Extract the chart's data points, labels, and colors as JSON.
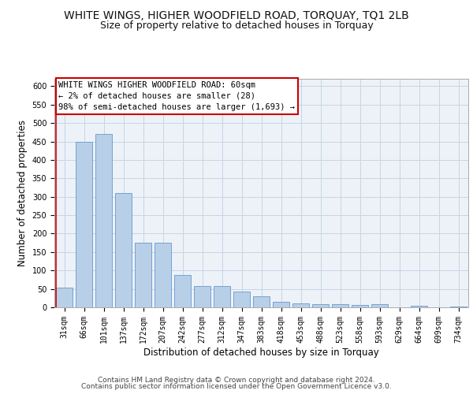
{
  "title": "WHITE WINGS, HIGHER WOODFIELD ROAD, TORQUAY, TQ1 2LB",
  "subtitle": "Size of property relative to detached houses in Torquay",
  "xlabel": "Distribution of detached houses by size in Torquay",
  "ylabel": "Number of detached properties",
  "categories": [
    "31sqm",
    "66sqm",
    "101sqm",
    "137sqm",
    "172sqm",
    "207sqm",
    "242sqm",
    "277sqm",
    "312sqm",
    "347sqm",
    "383sqm",
    "418sqm",
    "453sqm",
    "488sqm",
    "523sqm",
    "558sqm",
    "593sqm",
    "629sqm",
    "664sqm",
    "699sqm",
    "734sqm"
  ],
  "values": [
    53,
    450,
    470,
    310,
    175,
    175,
    88,
    58,
    58,
    43,
    30,
    15,
    10,
    9,
    8,
    7,
    8,
    0,
    4,
    0,
    3
  ],
  "bar_color": "#b8cfe8",
  "bar_edge_color": "#6699cc",
  "highlight_color": "#cc0000",
  "ylim": [
    0,
    620
  ],
  "yticks": [
    0,
    50,
    100,
    150,
    200,
    250,
    300,
    350,
    400,
    450,
    500,
    550,
    600
  ],
  "annotation_line1": "WHITE WINGS HIGHER WOODFIELD ROAD: 60sqm",
  "annotation_line2": "← 2% of detached houses are smaller (28)",
  "annotation_line3": "98% of semi-detached houses are larger (1,693) →",
  "footer1": "Contains HM Land Registry data © Crown copyright and database right 2024.",
  "footer2": "Contains public sector information licensed under the Open Government Licence v3.0.",
  "bg_color": "#edf2f8",
  "grid_color": "#c5d5e5",
  "title_fontsize": 10,
  "subtitle_fontsize": 9,
  "tick_fontsize": 7,
  "label_fontsize": 8.5,
  "footer_fontsize": 6.5,
  "ann_fontsize": 7.5
}
